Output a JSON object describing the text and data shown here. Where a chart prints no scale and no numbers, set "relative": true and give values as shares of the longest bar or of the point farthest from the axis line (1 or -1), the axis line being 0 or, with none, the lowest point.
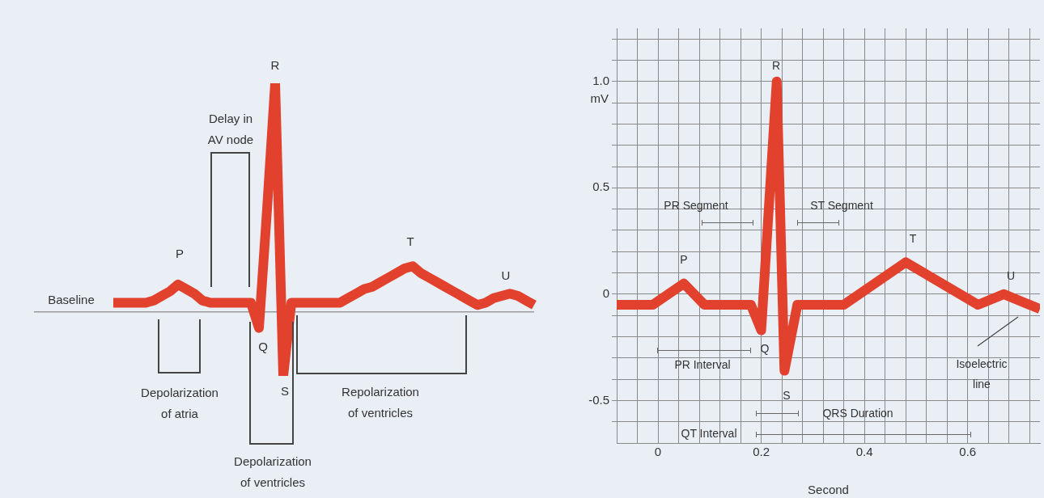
{
  "chart_data": [
    {
      "type": "line",
      "relative": true,
      "tick_labels": false,
      "categories": [
        null,
        null,
        null,
        null,
        null,
        null,
        null,
        null,
        null,
        null,
        null,
        null,
        null,
        null,
        null,
        null,
        null,
        null,
        null,
        null,
        null,
        null,
        null,
        null,
        null,
        null,
        null,
        null,
        null,
        null,
        null,
        null,
        null,
        null,
        null,
        null,
        null,
        null,
        null,
        null,
        null,
        null,
        null,
        null,
        null,
        null,
        null,
        null,
        null,
        null,
        null,
        null,
        null
      ],
      "series": [
        {
          "color": "#e2412d",
          "values": [
            0.04,
            0.04,
            0.04,
            0.04,
            0.04,
            0.05,
            0.07,
            0.09,
            0.12,
            0.1,
            0.08,
            0.05,
            0.04,
            0.04,
            0.04,
            0.04,
            0.04,
            0.04,
            -0.07,
            0.45,
            1,
            -0.28,
            0.04,
            0.04,
            0.04,
            0.04,
            0.04,
            0.04,
            0.04,
            0.06,
            0.08,
            0.1,
            0.11,
            0.13,
            0.15,
            0.17,
            0.19,
            0.2,
            0.17,
            0.15,
            0.13,
            0.11,
            0.09,
            0.07,
            0.05,
            0.03,
            0.04,
            0.06,
            0.07,
            0.08,
            0.07,
            0.05,
            0.03
          ]
        }
      ],
      "annotations": [
        "R",
        "P",
        "Q",
        "S",
        "T",
        "U",
        "Delay in AV node",
        "Depolarization of atria",
        "Depolarization of ventricles",
        "Repolarization of ventricles",
        "Baseline"
      ]
    },
    {
      "type": "line",
      "xlabel": "Second",
      "ylabel": "mV",
      "grid": true,
      "xlim": [
        -0.08,
        0.74
      ],
      "ylim": [
        -0.7,
        1.25
      ],
      "xticks": [
        {
          "value": -0.04,
          "label": null
        },
        0,
        {
          "value": 0.04,
          "label": null
        },
        {
          "value": 0.08,
          "label": null
        },
        {
          "value": 0.12,
          "label": null
        },
        {
          "value": 0.16,
          "label": null
        },
        0.2,
        {
          "value": 0.24,
          "label": null
        },
        {
          "value": 0.28,
          "label": null
        },
        {
          "value": 0.32,
          "label": null
        },
        {
          "value": 0.36,
          "label": null
        },
        0.4,
        {
          "value": 0.44,
          "label": null
        },
        {
          "value": 0.48,
          "label": null
        },
        {
          "value": 0.52,
          "label": null
        },
        {
          "value": 0.56,
          "label": null
        },
        0.6,
        {
          "value": 0.64,
          "label": null
        },
        {
          "value": 0.68,
          "label": null
        },
        {
          "value": 0.72,
          "label": null
        }
      ],
      "yticks": [
        {
          "value": -0.6,
          "label": null
        },
        -0.5,
        {
          "value": -0.4,
          "label": null
        },
        {
          "value": -0.3,
          "label": null
        },
        {
          "value": -0.2,
          "label": null
        },
        {
          "value": -0.1,
          "label": null
        },
        0,
        {
          "value": 0.1,
          "label": null
        },
        {
          "value": 0.2,
          "label": null
        },
        {
          "value": 0.3,
          "label": null
        },
        {
          "value": 0.4,
          "label": null
        },
        0.5,
        {
          "value": 0.6,
          "label": null
        },
        {
          "value": 0.7,
          "label": null
        },
        {
          "value": 0.8,
          "label": null
        },
        {
          "value": 0.9,
          "label": null
        },
        {
          "value": 1,
          "label": "1.0"
        },
        {
          "value": 1.1,
          "label": null
        },
        {
          "value": 1.2,
          "label": null
        }
      ],
      "x": [
        -0.08,
        -0.01,
        0.05,
        0.09,
        0.18,
        0.2,
        0.23,
        0.245,
        0.27,
        0.36,
        0.48,
        0.62,
        0.67,
        0.74
      ],
      "series": [
        {
          "color": "#e2412d",
          "values": [
            -0.05,
            -0.05,
            0.05,
            -0.05,
            -0.05,
            -0.17,
            1.0,
            -0.36,
            -0.05,
            -0.05,
            0.15,
            -0.05,
            0.0,
            -0.07
          ]
        }
      ],
      "annotations": [
        "R",
        "P",
        "Q",
        "S",
        "T",
        "U",
        "PR Segment",
        "ST Segment",
        "PR Interval",
        "QRS Duration",
        "QT Interval",
        "Isoelectric line"
      ]
    }
  ]
}
